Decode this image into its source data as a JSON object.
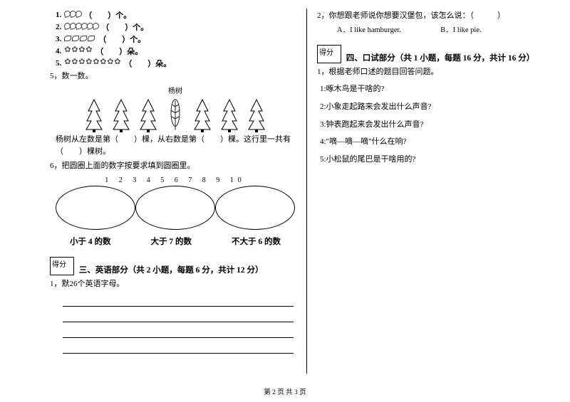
{
  "left": {
    "q1": {
      "num": "1.",
      "count": 3,
      "tail": "（　　）个。"
    },
    "q2": {
      "num": "2.",
      "count": 6,
      "tail": "（　　）个。"
    },
    "q3": {
      "num": "3.",
      "count": 4,
      "tail": "（　　）个。"
    },
    "q4": {
      "num": "4.",
      "count": 4,
      "tail": "（　　）朵。"
    },
    "q5_num": "5.",
    "q5_count": 8,
    "q5_tail": "（　　）朵。",
    "q5b": "5，数一数。",
    "yangshu": "杨树",
    "tree_line": "杨树从左数是第（　　）棵，从右数是第（　　）棵。这行里一共有（　　）棵树。",
    "q6": "6，把圆圈上面的数字按要求填到圆圈里。",
    "numbers": "1  2  3  4  5  6  7  8  9  10",
    "oval1": "小于 4 的数",
    "oval2": "大于 7 的数",
    "oval3": "不大于 6 的数",
    "score": "得分",
    "sec3": "三、英语部分（共 2 小题，每题 6 分，共计 12 分）",
    "eng1": "1，默26个英语字母。"
  },
  "right": {
    "q2": "2，你想跟老师说你想要汉堡包，该怎么说：（　　　）",
    "optA": "A．I like hamburger.",
    "optB": "B．I like pie.",
    "score": "得分",
    "sec4": "四、口试部分（共 1 小题，每题 16 分，共计 16 分）",
    "oral1": "1，根据老师口述的题目回答问题。",
    "o1": "1:啄木鸟是干啥的?",
    "o2": "2:小象走起路来会发出什么声音?",
    "o3": "3:钟表跑起来会发出什么声音?",
    "o4": "4:\"嘀—嘀—嘀\"什么在响?",
    "o5": "5:小松鼠的尾巴是干啥用的?"
  },
  "footer": "第 2 页 共 3 页"
}
